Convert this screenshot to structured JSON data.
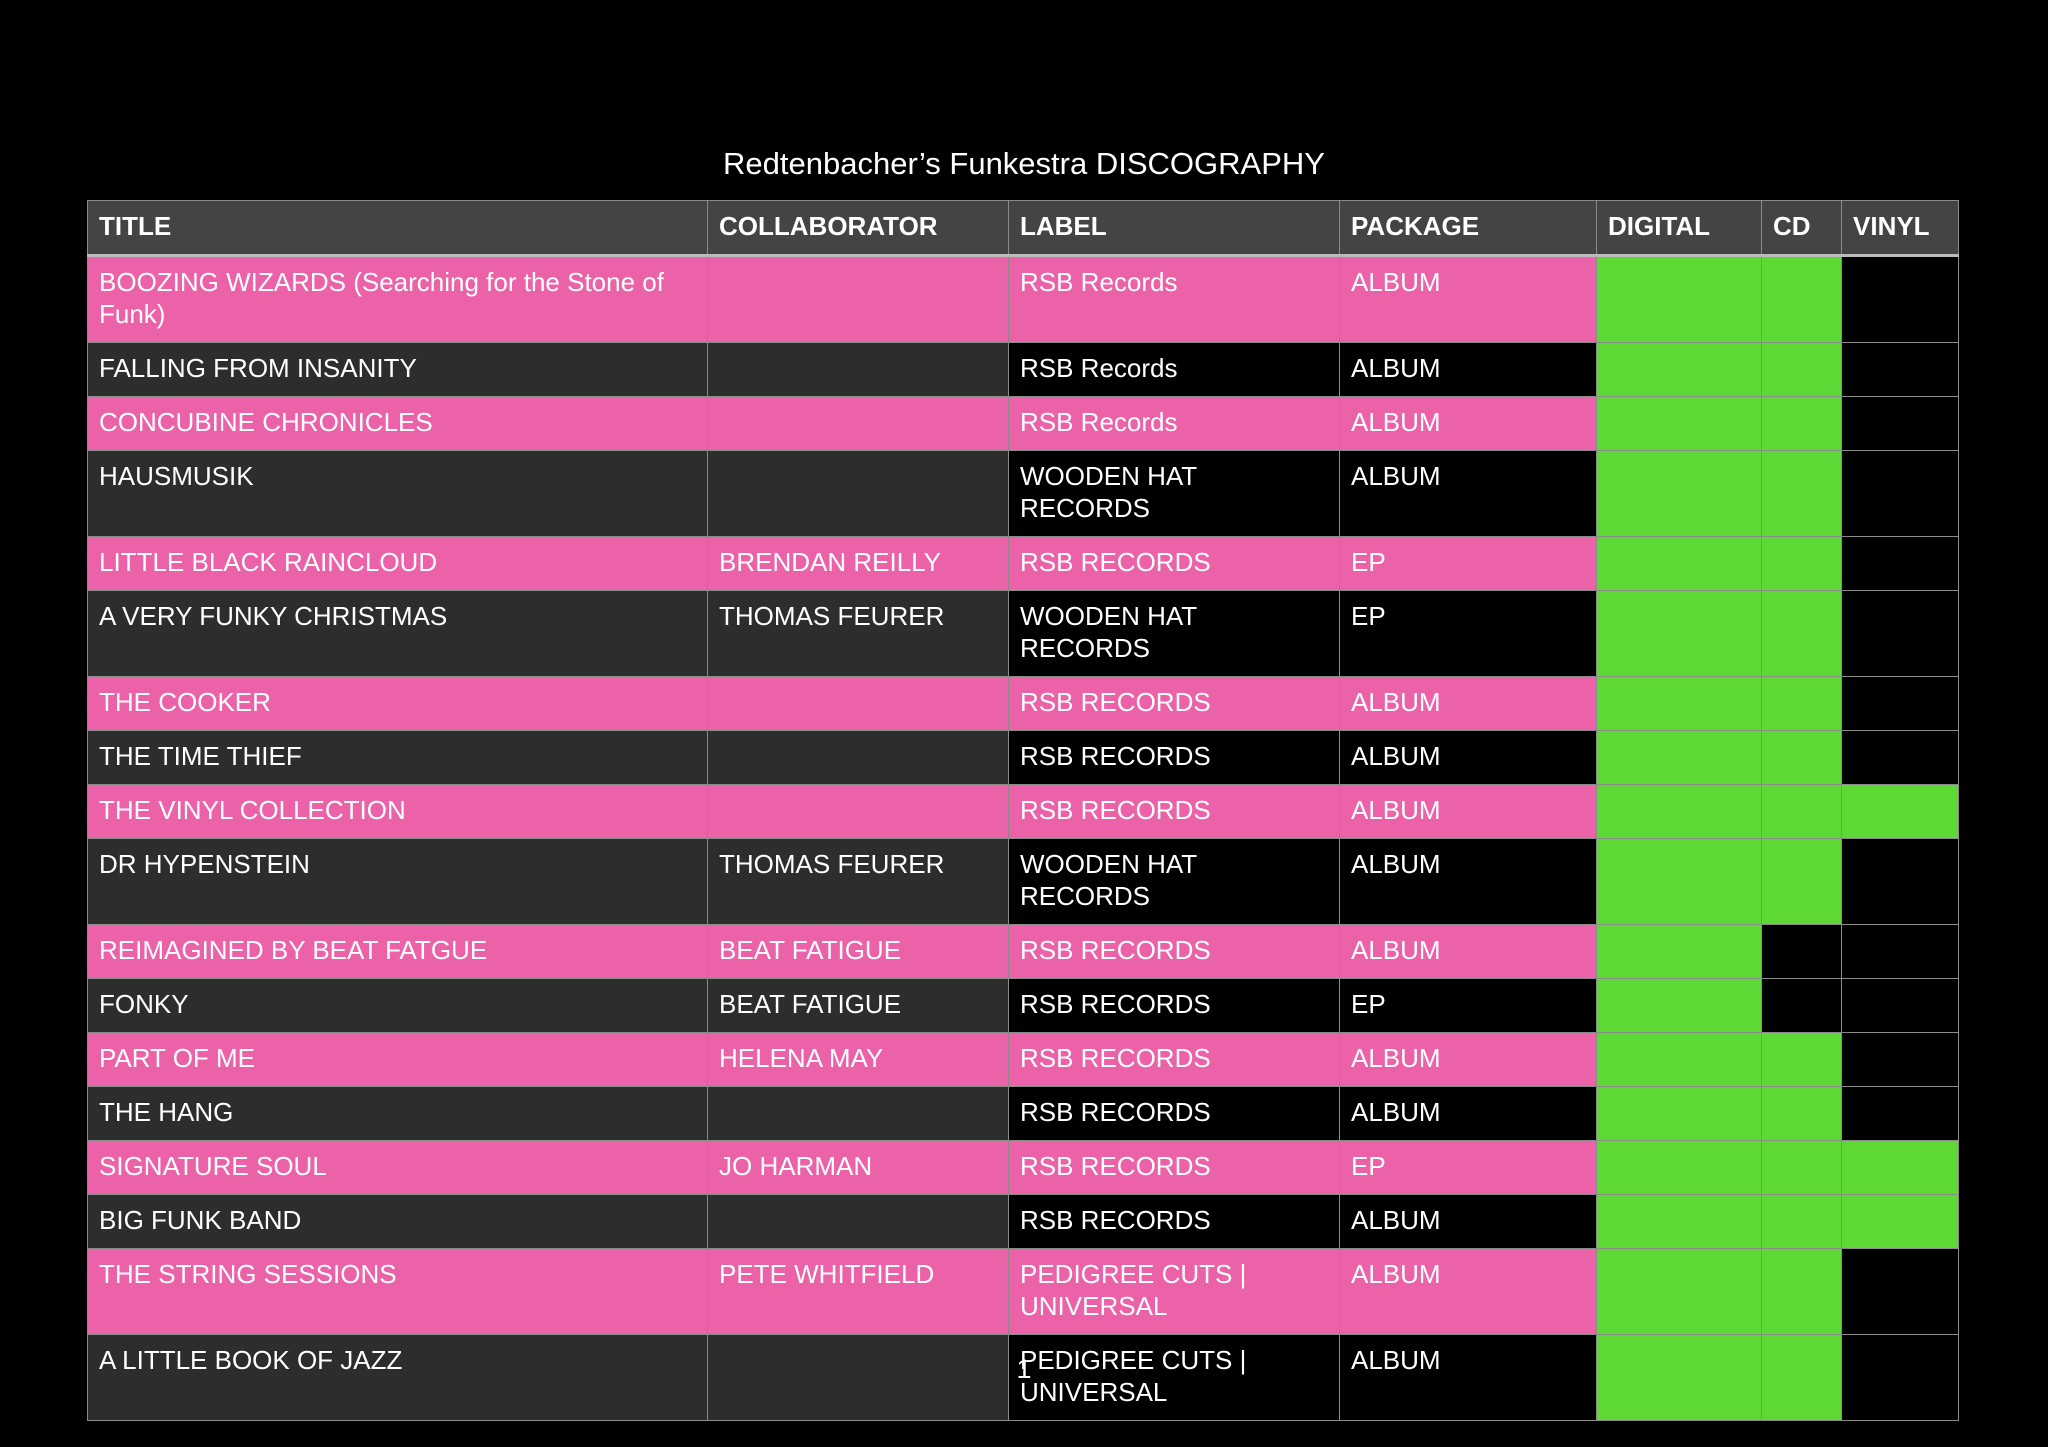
{
  "header": {
    "title": "Redtenbacher’s Funkestra DISCOGRAPHY"
  },
  "table": {
    "columns": [
      "TITLE",
      "COLLABORATOR",
      "LABEL",
      "PACKAGE",
      "DIGITAL",
      "CD",
      "VINYL"
    ],
    "rows": [
      {
        "title": "BOOZING WIZARDS (Searching for the Stone of Funk)",
        "collaborator": null,
        "label": "RSB Records",
        "package": "ALBUM",
        "digital": true,
        "cd": true,
        "vinyl": false
      },
      {
        "title": "FALLING FROM INSANITY",
        "collaborator": null,
        "label": "RSB Records",
        "package": "ALBUM",
        "digital": true,
        "cd": true,
        "vinyl": false
      },
      {
        "title": "CONCUBINE CHRONICLES",
        "collaborator": null,
        "label": "RSB Records",
        "package": "ALBUM",
        "digital": true,
        "cd": true,
        "vinyl": false
      },
      {
        "title": "HAUSMUSIK",
        "collaborator": null,
        "label": "WOODEN HAT RECORDS",
        "package": "ALBUM",
        "digital": true,
        "cd": true,
        "vinyl": false
      },
      {
        "title": "LITTLE BLACK RAINCLOUD",
        "collaborator": "BRENDAN REILLY",
        "label": "RSB RECORDS",
        "package": "EP",
        "digital": true,
        "cd": true,
        "vinyl": false
      },
      {
        "title": "A VERY FUNKY CHRISTMAS",
        "collaborator": "THOMAS FEURER",
        "label": "WOODEN HAT RECORDS",
        "package": "EP",
        "digital": true,
        "cd": true,
        "vinyl": false
      },
      {
        "title": "THE COOKER",
        "collaborator": null,
        "label": "RSB RECORDS",
        "package": "ALBUM",
        "digital": true,
        "cd": true,
        "vinyl": false
      },
      {
        "title": "THE TIME THIEF",
        "collaborator": null,
        "label": "RSB RECORDS",
        "package": "ALBUM",
        "digital": true,
        "cd": true,
        "vinyl": false
      },
      {
        "title": "THE VINYL COLLECTION",
        "collaborator": null,
        "label": "RSB RECORDS",
        "package": "ALBUM",
        "digital": true,
        "cd": true,
        "vinyl": true
      },
      {
        "title": "DR HYPENSTEIN",
        "collaborator": "THOMAS FEURER",
        "label": "WOODEN HAT RECORDS",
        "package": "ALBUM",
        "digital": true,
        "cd": true,
        "vinyl": false
      },
      {
        "title": "REIMAGINED BY BEAT FATGUE",
        "collaborator": "BEAT FATIGUE",
        "label": "RSB RECORDS",
        "package": "ALBUM",
        "digital": true,
        "cd": false,
        "vinyl": false
      },
      {
        "title": "FONKY",
        "collaborator": "BEAT FATIGUE",
        "label": "RSB RECORDS",
        "package": "EP",
        "digital": true,
        "cd": false,
        "vinyl": false
      },
      {
        "title": "PART OF ME",
        "collaborator": "HELENA MAY",
        "label": "RSB RECORDS",
        "package": "ALBUM",
        "digital": true,
        "cd": true,
        "vinyl": false
      },
      {
        "title": "THE HANG",
        "collaborator": null,
        "label": "RSB RECORDS",
        "package": "ALBUM",
        "digital": true,
        "cd": true,
        "vinyl": false
      },
      {
        "title": "SIGNATURE SOUL",
        "collaborator": "JO HARMAN",
        "label": "RSB RECORDS",
        "package": "EP",
        "digital": true,
        "cd": true,
        "vinyl": true
      },
      {
        "title": "BIG FUNK BAND",
        "collaborator": null,
        "label": "RSB RECORDS",
        "package": "ALBUM",
        "digital": true,
        "cd": true,
        "vinyl": true
      },
      {
        "title": "THE STRING SESSIONS",
        "collaborator": "PETE WHITFIELD",
        "label": "PEDIGREE CUTS | UNIVERSAL",
        "package": "ALBUM",
        "digital": true,
        "cd": true,
        "vinyl": false
      },
      {
        "title": "A LITTLE BOOK OF JAZZ",
        "collaborator": null,
        "label": "PEDIGREE CUTS | UNIVERSAL",
        "package": "ALBUM",
        "digital": true,
        "cd": true,
        "vinyl": false
      }
    ]
  },
  "footer": {
    "page_number": 1
  }
}
